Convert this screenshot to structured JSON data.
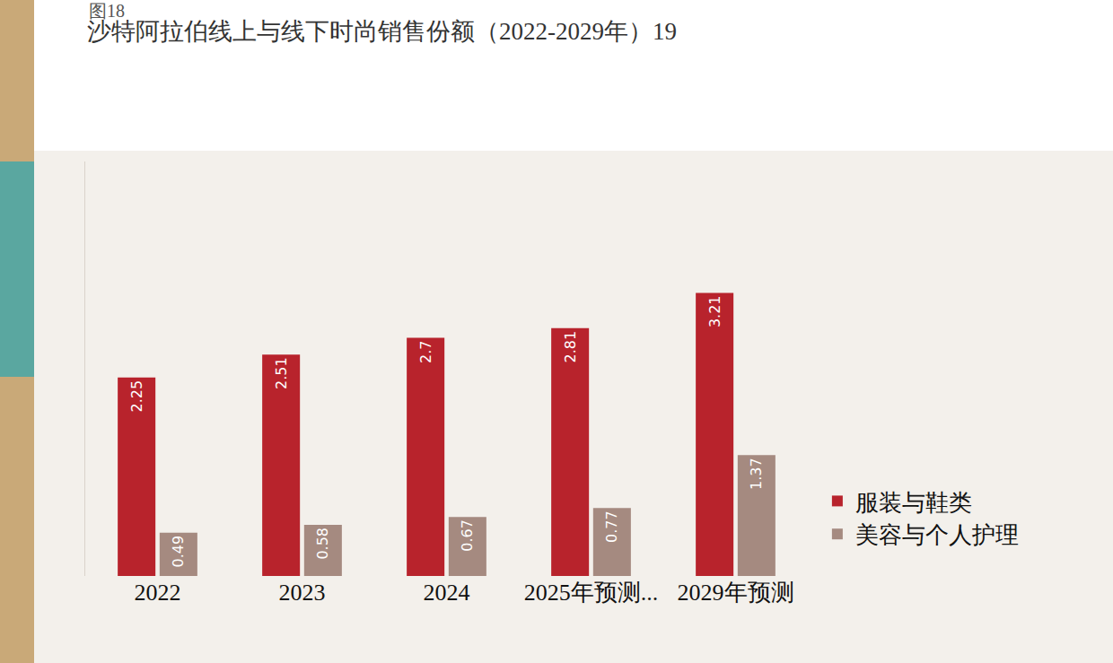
{
  "chart_data": {
    "type": "bar",
    "title": "沙特阿拉伯线上与线下时尚销售份额（2022-2029年）19",
    "annotations": [
      {
        "text": "图18"
      }
    ],
    "categories": [
      "2022",
      "2023",
      "2024",
      "2025年预测...",
      "2029年预测"
    ],
    "series": [
      {
        "name": "服装与鞋类",
        "color": "#b8232c",
        "values": [
          2.25,
          2.51,
          2.7,
          2.81,
          3.21
        ]
      },
      {
        "name": "美容与个人护理",
        "color": "#a58a80",
        "values": [
          0.49,
          0.58,
          0.67,
          0.77,
          1.37
        ]
      }
    ],
    "ylim": [
      0,
      4.7
    ],
    "yticks": [],
    "grid": false,
    "legend": "right",
    "data_labels": true,
    "tick_labels": "x"
  }
}
